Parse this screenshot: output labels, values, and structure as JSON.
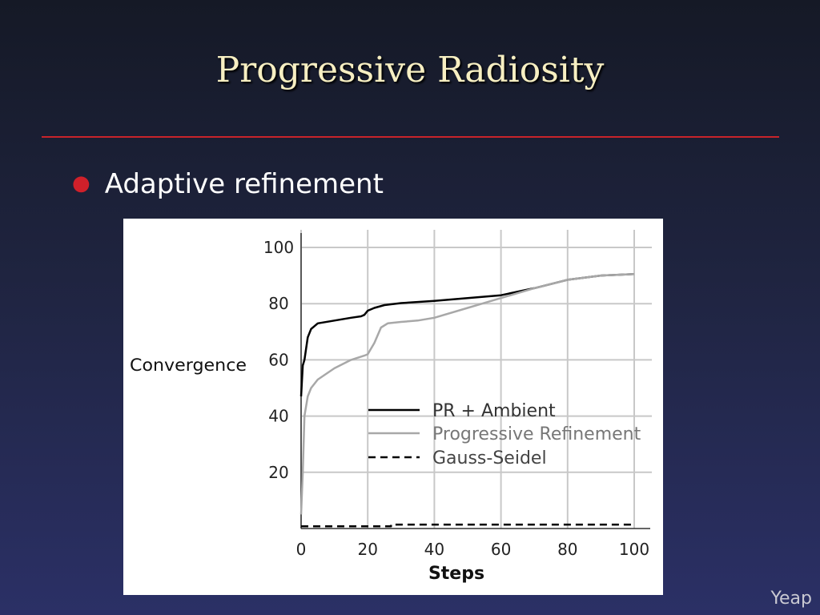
{
  "slide": {
    "title": "Progressive Radiosity",
    "bullet": "Adaptive refinement",
    "footer": "Yeap"
  },
  "chart_data": {
    "type": "line",
    "xlabel": "Steps",
    "ylabel": "Convergence",
    "xlim": [
      0,
      100
    ],
    "ylim": [
      0,
      100
    ],
    "xticks": [
      0,
      20,
      40,
      60,
      80,
      100
    ],
    "yticks": [
      20,
      40,
      60,
      80,
      100
    ],
    "grid": true,
    "legend_position": "center-right",
    "series": [
      {
        "name": "PR + Ambient",
        "style": "solid",
        "color": "#000000",
        "points": [
          [
            0,
            47
          ],
          [
            0.5,
            58
          ],
          [
            1,
            60
          ],
          [
            2,
            68
          ],
          [
            3,
            71
          ],
          [
            5,
            73
          ],
          [
            10,
            74
          ],
          [
            15,
            75
          ],
          [
            18,
            75.5
          ],
          [
            19,
            76
          ],
          [
            20,
            77.5
          ],
          [
            22,
            78.5
          ],
          [
            25,
            79.5
          ],
          [
            30,
            80.2
          ],
          [
            40,
            81
          ],
          [
            50,
            82
          ],
          [
            60,
            83
          ],
          [
            70,
            85.5
          ],
          [
            80,
            88.5
          ],
          [
            90,
            90
          ],
          [
            100,
            90.5
          ]
        ]
      },
      {
        "name": "Progressive Refinement",
        "style": "solid",
        "color": "#a8a8a8",
        "points": [
          [
            0,
            5
          ],
          [
            0.5,
            20
          ],
          [
            1,
            40
          ],
          [
            2,
            47
          ],
          [
            3,
            50
          ],
          [
            5,
            53
          ],
          [
            10,
            57
          ],
          [
            15,
            60
          ],
          [
            19,
            61.5
          ],
          [
            20,
            62
          ],
          [
            22,
            66
          ],
          [
            24,
            71.5
          ],
          [
            26,
            73
          ],
          [
            30,
            73.5
          ],
          [
            35,
            74
          ],
          [
            40,
            75
          ],
          [
            50,
            78.5
          ],
          [
            60,
            82
          ],
          [
            70,
            85.5
          ],
          [
            80,
            88.5
          ],
          [
            90,
            90
          ],
          [
            100,
            90.5
          ]
        ]
      },
      {
        "name": "Gauss-Seidel",
        "style": "dashed",
        "color": "#000000",
        "points": [
          [
            0,
            0.8
          ],
          [
            27,
            0.8
          ],
          [
            27,
            1.4
          ],
          [
            100,
            1.4
          ]
        ]
      }
    ]
  }
}
